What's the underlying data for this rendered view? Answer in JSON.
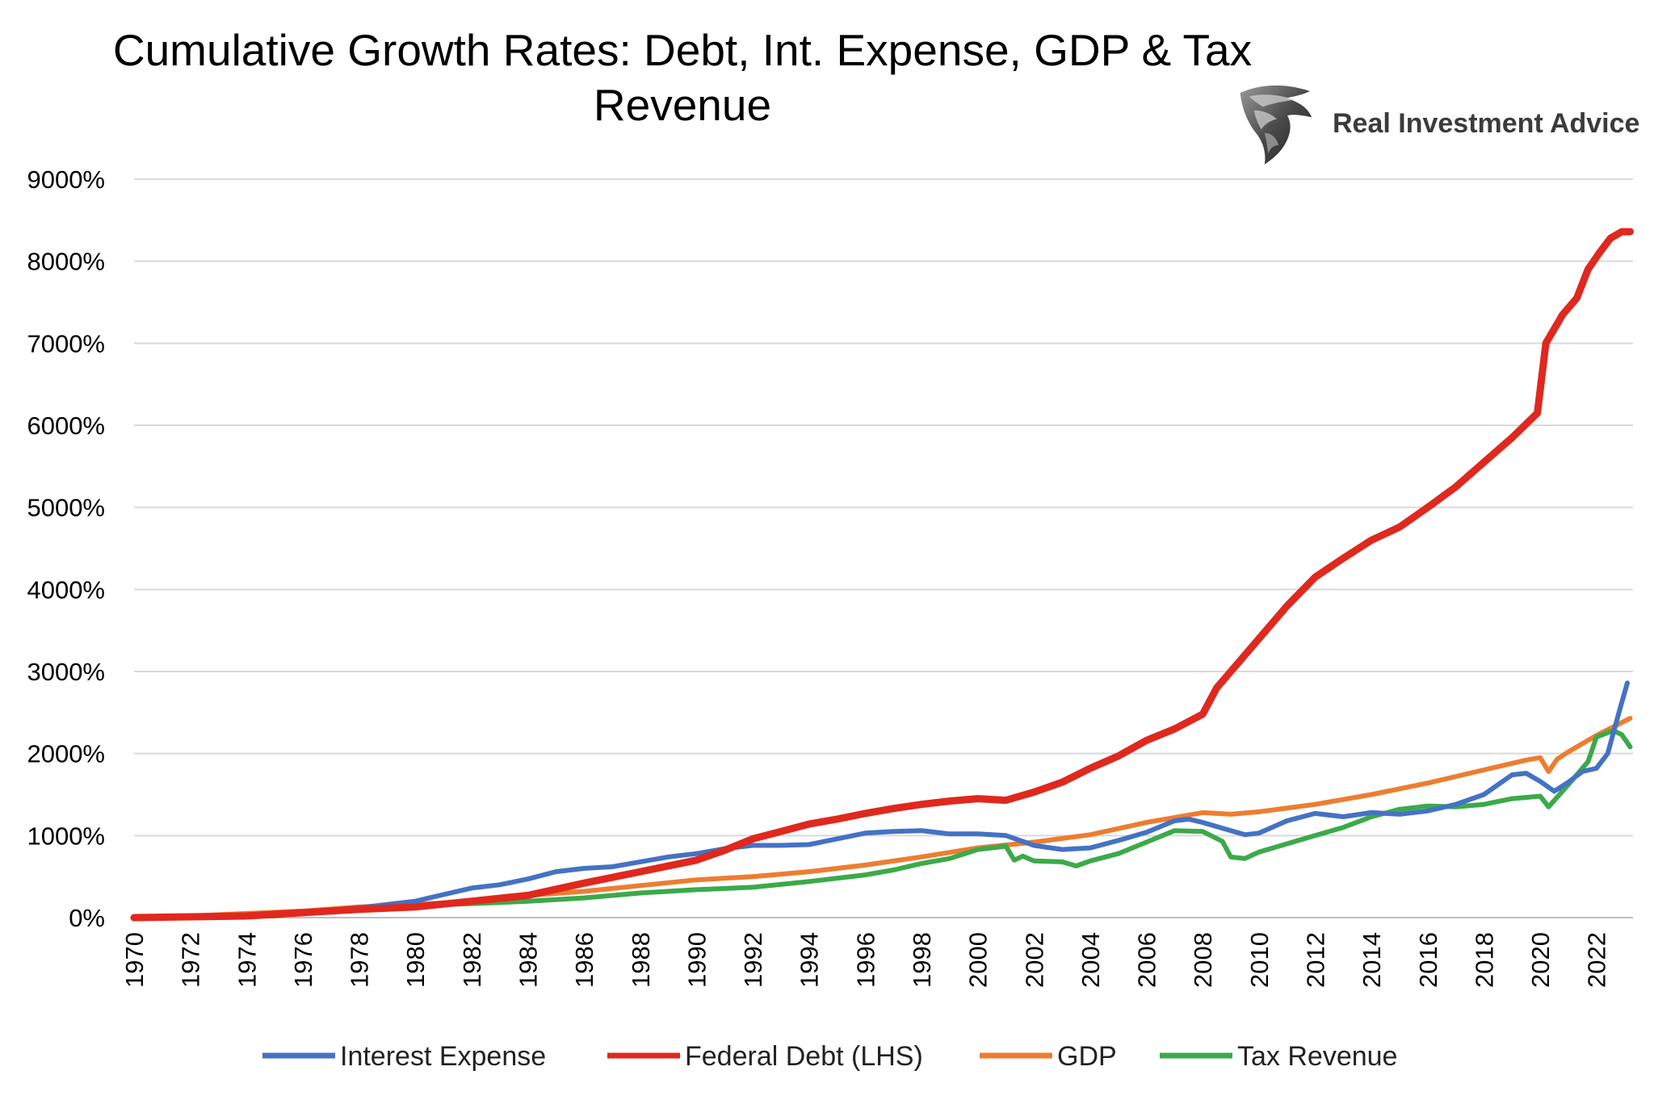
{
  "header": {
    "title_line1": "Cumulative Growth Rates: Debt, Int. Expense, GDP & Tax",
    "title_line2": "Revenue",
    "brand": "Real Investment Advice",
    "brand_logo_icon": "eagle-head-icon"
  },
  "chart_data": {
    "type": "line",
    "title": "Cumulative Growth Rates: Debt, Int. Expense, GDP & Tax Revenue",
    "xlabel": "",
    "ylabel": "",
    "xlim": [
      1970,
      2023.3
    ],
    "ylim": [
      0,
      9000
    ],
    "y_ticks": [
      "0%",
      "1000%",
      "2000%",
      "3000%",
      "4000%",
      "5000%",
      "6000%",
      "7000%",
      "8000%",
      "9000%"
    ],
    "y_tick_values": [
      0,
      1000,
      2000,
      3000,
      4000,
      5000,
      6000,
      7000,
      8000,
      9000
    ],
    "x_ticks": [
      "1970",
      "1972",
      "1974",
      "1976",
      "1978",
      "1980",
      "1982",
      "1984",
      "1986",
      "1988",
      "1990",
      "1992",
      "1994",
      "1996",
      "1998",
      "2000",
      "2002",
      "2004",
      "2006",
      "2008",
      "2010",
      "2012",
      "2014",
      "2016",
      "2018",
      "2020",
      "2022"
    ],
    "x_tick_values": [
      1970,
      1972,
      1974,
      1976,
      1978,
      1980,
      1982,
      1984,
      1986,
      1988,
      1990,
      1992,
      1994,
      1996,
      1998,
      2000,
      2002,
      2004,
      2006,
      2008,
      2010,
      2012,
      2014,
      2016,
      2018,
      2020,
      2022
    ],
    "grid": true,
    "legend_position": "bottom",
    "series": [
      {
        "name": "Interest Expense",
        "color": "#4472C4",
        "points": [
          [
            1970,
            0
          ],
          [
            1972,
            5
          ],
          [
            1974,
            30
          ],
          [
            1976,
            60
          ],
          [
            1978,
            120
          ],
          [
            1980,
            200
          ],
          [
            1980.5,
            240
          ],
          [
            1981,
            280
          ],
          [
            1982,
            360
          ],
          [
            1983,
            400
          ],
          [
            1984,
            470
          ],
          [
            1985,
            560
          ],
          [
            1986,
            600
          ],
          [
            1987,
            620
          ],
          [
            1988,
            680
          ],
          [
            1989,
            740
          ],
          [
            1990,
            780
          ],
          [
            1991,
            840
          ],
          [
            1992,
            880
          ],
          [
            1993,
            880
          ],
          [
            1994,
            890
          ],
          [
            1995,
            960
          ],
          [
            1996,
            1030
          ],
          [
            1997,
            1050
          ],
          [
            1998,
            1060
          ],
          [
            1999,
            1020
          ],
          [
            2000,
            1020
          ],
          [
            2001,
            1000
          ],
          [
            2002,
            880
          ],
          [
            2003,
            830
          ],
          [
            2004,
            850
          ],
          [
            2005,
            940
          ],
          [
            2006,
            1040
          ],
          [
            2007,
            1180
          ],
          [
            2007.5,
            1200
          ],
          [
            2008,
            1160
          ],
          [
            2009,
            1060
          ],
          [
            2009.5,
            1010
          ],
          [
            2010,
            1030
          ],
          [
            2011,
            1180
          ],
          [
            2012,
            1270
          ],
          [
            2013,
            1230
          ],
          [
            2014,
            1280
          ],
          [
            2015,
            1260
          ],
          [
            2016,
            1300
          ],
          [
            2017,
            1380
          ],
          [
            2018,
            1500
          ],
          [
            2019,
            1740
          ],
          [
            2019.5,
            1760
          ],
          [
            2020,
            1660
          ],
          [
            2020.5,
            1540
          ],
          [
            2021,
            1650
          ],
          [
            2021.5,
            1780
          ],
          [
            2022,
            1820
          ],
          [
            2022.4,
            2000
          ],
          [
            2022.8,
            2500
          ],
          [
            2023.1,
            2860
          ]
        ]
      },
      {
        "name": "Federal Debt (LHS)",
        "color": "#E0281E",
        "points": [
          [
            1970,
            0
          ],
          [
            1972,
            10
          ],
          [
            1974,
            20
          ],
          [
            1976,
            60
          ],
          [
            1978,
            100
          ],
          [
            1980,
            130
          ],
          [
            1982,
            200
          ],
          [
            1984,
            270
          ],
          [
            1986,
            420
          ],
          [
            1988,
            560
          ],
          [
            1990,
            700
          ],
          [
            1991,
            820
          ],
          [
            1992,
            960
          ],
          [
            1993,
            1050
          ],
          [
            1994,
            1140
          ],
          [
            1995,
            1200
          ],
          [
            1996,
            1270
          ],
          [
            1997,
            1330
          ],
          [
            1998,
            1380
          ],
          [
            1999,
            1420
          ],
          [
            2000,
            1450
          ],
          [
            2001,
            1430
          ],
          [
            2002,
            1530
          ],
          [
            2003,
            1650
          ],
          [
            2004,
            1820
          ],
          [
            2005,
            1970
          ],
          [
            2006,
            2160
          ],
          [
            2007,
            2300
          ],
          [
            2008,
            2480
          ],
          [
            2008.5,
            2800
          ],
          [
            2009,
            3000
          ],
          [
            2010,
            3400
          ],
          [
            2011,
            3800
          ],
          [
            2012,
            4150
          ],
          [
            2013,
            4380
          ],
          [
            2014,
            4600
          ],
          [
            2015,
            4760
          ],
          [
            2016,
            5000
          ],
          [
            2017,
            5250
          ],
          [
            2018,
            5550
          ],
          [
            2019,
            5850
          ],
          [
            2019.9,
            6150
          ],
          [
            2020.2,
            7000
          ],
          [
            2020.8,
            7350
          ],
          [
            2021.3,
            7550
          ],
          [
            2021.7,
            7900
          ],
          [
            2022.1,
            8100
          ],
          [
            2022.5,
            8280
          ],
          [
            2022.9,
            8360
          ],
          [
            2023.2,
            8360
          ]
        ]
      },
      {
        "name": "GDP",
        "color": "#ED7D31",
        "points": [
          [
            1970,
            0
          ],
          [
            1972,
            20
          ],
          [
            1974,
            50
          ],
          [
            1976,
            80
          ],
          [
            1978,
            130
          ],
          [
            1980,
            160
          ],
          [
            1982,
            200
          ],
          [
            1984,
            270
          ],
          [
            1986,
            320
          ],
          [
            1988,
            390
          ],
          [
            1990,
            460
          ],
          [
            1992,
            500
          ],
          [
            1994,
            560
          ],
          [
            1996,
            640
          ],
          [
            1998,
            740
          ],
          [
            2000,
            850
          ],
          [
            2002,
            920
          ],
          [
            2004,
            1010
          ],
          [
            2006,
            1160
          ],
          [
            2008,
            1280
          ],
          [
            2009,
            1260
          ],
          [
            2010,
            1290
          ],
          [
            2012,
            1380
          ],
          [
            2014,
            1500
          ],
          [
            2016,
            1640
          ],
          [
            2018,
            1800
          ],
          [
            2019.5,
            1920
          ],
          [
            2020.0,
            1950
          ],
          [
            2020.3,
            1780
          ],
          [
            2020.6,
            1930
          ],
          [
            2021,
            2020
          ],
          [
            2022,
            2220
          ],
          [
            2023.2,
            2430
          ]
        ]
      },
      {
        "name": "Tax Revenue",
        "color": "#3BAA4A",
        "points": [
          [
            1970,
            0
          ],
          [
            1972,
            5
          ],
          [
            1974,
            25
          ],
          [
            1975,
            20
          ],
          [
            1976,
            60
          ],
          [
            1978,
            100
          ],
          [
            1980,
            150
          ],
          [
            1982,
            170
          ],
          [
            1984,
            200
          ],
          [
            1986,
            240
          ],
          [
            1988,
            300
          ],
          [
            1990,
            340
          ],
          [
            1992,
            370
          ],
          [
            1994,
            440
          ],
          [
            1996,
            520
          ],
          [
            1997,
            580
          ],
          [
            1998,
            660
          ],
          [
            1999,
            720
          ],
          [
            2000,
            830
          ],
          [
            2001,
            870
          ],
          [
            2001.3,
            700
          ],
          [
            2001.6,
            750
          ],
          [
            2002,
            690
          ],
          [
            2003,
            680
          ],
          [
            2003.5,
            630
          ],
          [
            2004,
            690
          ],
          [
            2005,
            780
          ],
          [
            2006,
            920
          ],
          [
            2007,
            1060
          ],
          [
            2008,
            1050
          ],
          [
            2008.7,
            930
          ],
          [
            2009,
            740
          ],
          [
            2009.5,
            720
          ],
          [
            2010,
            800
          ],
          [
            2011,
            900
          ],
          [
            2012,
            1000
          ],
          [
            2013,
            1100
          ],
          [
            2014,
            1230
          ],
          [
            2015,
            1320
          ],
          [
            2016,
            1360
          ],
          [
            2017,
            1350
          ],
          [
            2018,
            1380
          ],
          [
            2019,
            1450
          ],
          [
            2020,
            1480
          ],
          [
            2020.3,
            1350
          ],
          [
            2021,
            1620
          ],
          [
            2021.7,
            1900
          ],
          [
            2022,
            2200
          ],
          [
            2022.6,
            2280
          ],
          [
            2022.9,
            2230
          ],
          [
            2023.2,
            2080
          ]
        ]
      }
    ]
  }
}
